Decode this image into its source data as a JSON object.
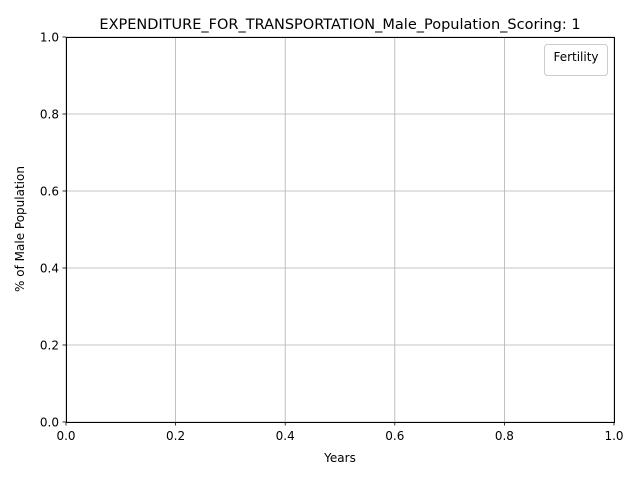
{
  "chart_data": {
    "type": "line",
    "title": "EXPENDITURE_FOR_TRANSPORTATION_Male_Population_Scoring: 1",
    "xlabel": "Years",
    "ylabel": "% of Male Population",
    "xlim": [
      0.0,
      1.0
    ],
    "ylim": [
      0.0,
      1.0
    ],
    "x_ticks": [
      "0.0",
      "0.2",
      "0.4",
      "0.6",
      "0.8",
      "1.0"
    ],
    "y_ticks": [
      "0.0",
      "0.2",
      "0.4",
      "0.6",
      "0.8",
      "1.0"
    ],
    "grid": true,
    "legend": {
      "title": "Fertility",
      "placement": "top-right"
    },
    "series": []
  }
}
